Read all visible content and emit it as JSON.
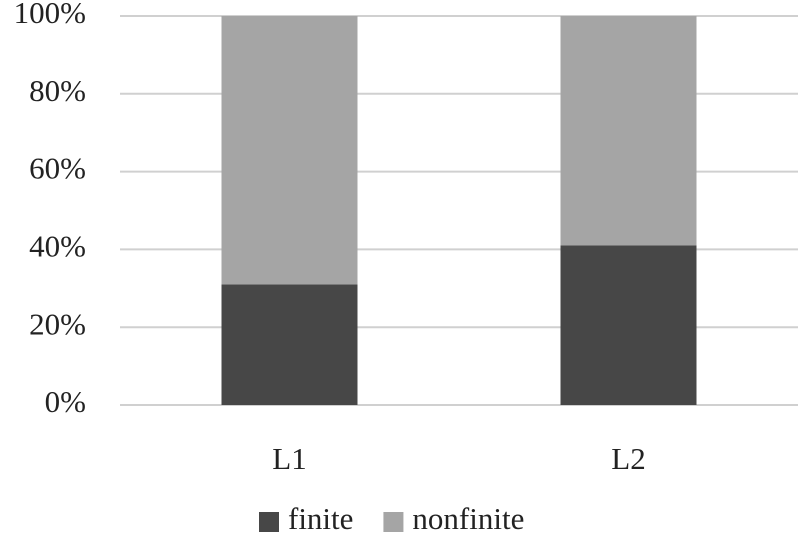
{
  "chart_data": {
    "type": "bar",
    "stacked": true,
    "categories": [
      "L1",
      "L2"
    ],
    "series": [
      {
        "name": "finite",
        "color": "#474747",
        "values": [
          31,
          41
        ]
      },
      {
        "name": "nonfinite",
        "color": "#a5a5a5",
        "values": [
          69,
          59
        ]
      }
    ],
    "ylim": [
      0,
      100
    ],
    "yticks": [
      {
        "value": 0,
        "label": "0%"
      },
      {
        "value": 20,
        "label": "20%"
      },
      {
        "value": 40,
        "label": "40%"
      },
      {
        "value": 60,
        "label": "60%"
      },
      {
        "value": 80,
        "label": "80%"
      },
      {
        "value": 100,
        "label": "100%"
      }
    ],
    "grid": true,
    "legend": "bottom"
  }
}
